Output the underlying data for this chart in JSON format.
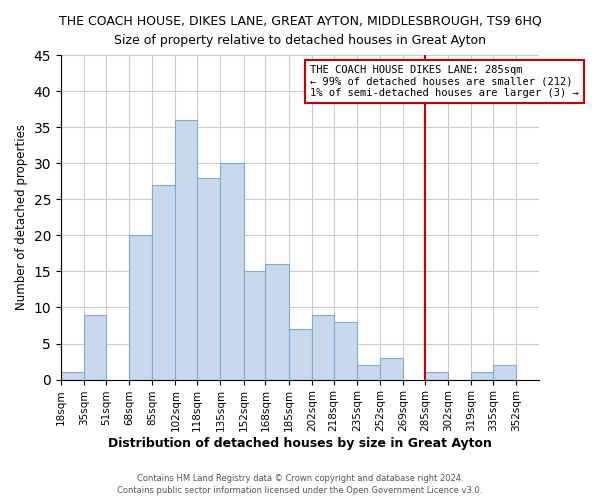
{
  "title": "THE COACH HOUSE, DIKES LANE, GREAT AYTON, MIDDLESBROUGH, TS9 6HQ",
  "subtitle": "Size of property relative to detached houses in Great Ayton",
  "xlabel": "Distribution of detached houses by size in Great Ayton",
  "ylabel": "Number of detached properties",
  "bar_color": "#c8d8ed",
  "bar_edge_color": "#7aaed0",
  "bin_labels": [
    "18sqm",
    "35sqm",
    "51sqm",
    "68sqm",
    "85sqm",
    "102sqm",
    "118sqm",
    "135sqm",
    "152sqm",
    "168sqm",
    "185sqm",
    "202sqm",
    "218sqm",
    "235sqm",
    "252sqm",
    "269sqm",
    "285sqm",
    "302sqm",
    "319sqm",
    "335sqm",
    "352sqm"
  ],
  "bin_edges": [
    18,
    35,
    51,
    68,
    85,
    102,
    118,
    135,
    152,
    168,
    185,
    202,
    218,
    235,
    252,
    269,
    285,
    302,
    319,
    335,
    352,
    369
  ],
  "counts": [
    1,
    9,
    0,
    20,
    27,
    36,
    28,
    30,
    15,
    16,
    7,
    9,
    8,
    2,
    3,
    0,
    1,
    0,
    1,
    2,
    0
  ],
  "ylim": [
    0,
    45
  ],
  "yticks": [
    0,
    5,
    10,
    15,
    20,
    25,
    30,
    35,
    40,
    45
  ],
  "reference_line_x": 285,
  "annotation_title": "THE COACH HOUSE DIKES LANE: 285sqm",
  "annotation_line1": "← 99% of detached houses are smaller (212)",
  "annotation_line2": "1% of semi-detached houses are larger (3) →",
  "footer1": "Contains HM Land Registry data © Crown copyright and database right 2024.",
  "footer2": "Contains public sector information licensed under the Open Government Licence v3.0.",
  "grid_color": "#cccccc",
  "ref_line_color": "#cc0000",
  "annotation_box_color": "#cc0000"
}
